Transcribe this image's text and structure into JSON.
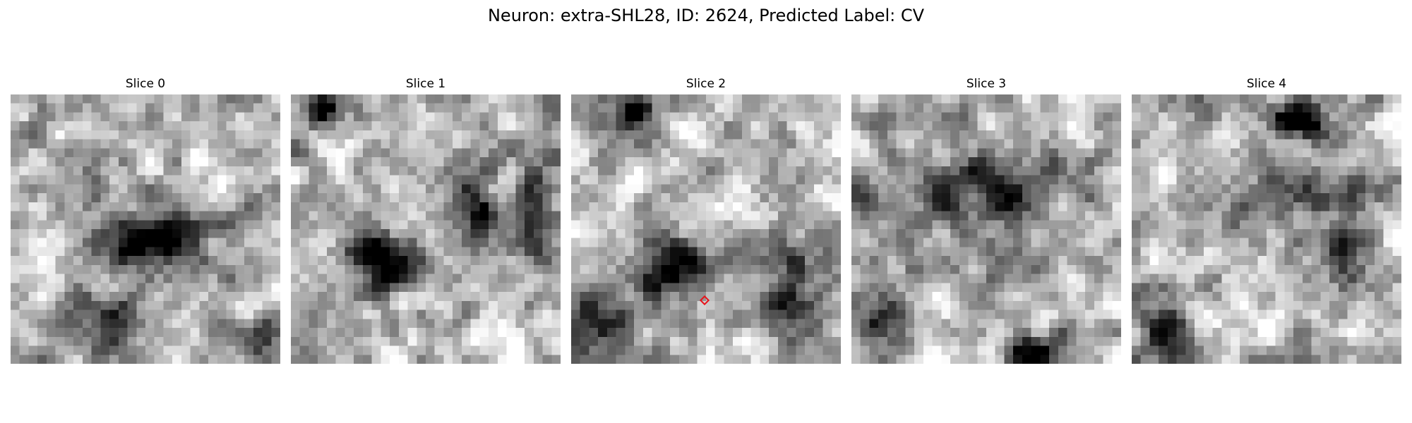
{
  "title": "Neuron: extra-SHL28, ID: 2624, Predicted Label: CV",
  "colormap": "gray",
  "marker_color": "#e8141b",
  "panels": [
    {
      "label": "Slice 0",
      "seed": 11,
      "blobs": [
        [
          0.55,
          0.55,
          0.2,
          0.12,
          0.85
        ],
        [
          0.35,
          0.85,
          0.15,
          0.12,
          0.55
        ],
        [
          0.25,
          0.35,
          0.1,
          0.1,
          0.35
        ],
        [
          0.95,
          0.92,
          0.08,
          0.08,
          0.5
        ]
      ]
    },
    {
      "label": "Slice 1",
      "seed": 23,
      "blobs": [
        [
          0.35,
          0.62,
          0.15,
          0.1,
          0.85
        ],
        [
          0.13,
          0.05,
          0.07,
          0.07,
          0.8
        ],
        [
          0.68,
          0.42,
          0.08,
          0.15,
          0.5
        ],
        [
          0.92,
          0.45,
          0.08,
          0.18,
          0.55
        ]
      ]
    },
    {
      "label": "Slice 2",
      "seed": 37,
      "blobs": [
        [
          0.37,
          0.66,
          0.15,
          0.1,
          0.8
        ],
        [
          0.25,
          0.07,
          0.08,
          0.06,
          0.85
        ],
        [
          0.1,
          0.85,
          0.12,
          0.12,
          0.6
        ],
        [
          0.8,
          0.75,
          0.15,
          0.18,
          0.55
        ]
      ]
    },
    {
      "label": "Slice 3",
      "seed": 51,
      "blobs": [
        [
          0.68,
          0.96,
          0.1,
          0.06,
          0.8
        ],
        [
          0.5,
          0.35,
          0.25,
          0.1,
          0.5
        ],
        [
          0.08,
          0.85,
          0.1,
          0.12,
          0.55
        ],
        [
          0.5,
          0.5,
          0.4,
          0.4,
          0.15
        ]
      ]
    },
    {
      "label": "Slice 4",
      "seed": 67,
      "blobs": [
        [
          0.62,
          0.1,
          0.12,
          0.06,
          0.9
        ],
        [
          0.6,
          0.35,
          0.22,
          0.08,
          0.45
        ],
        [
          0.12,
          0.85,
          0.12,
          0.12,
          0.5
        ],
        [
          0.8,
          0.6,
          0.1,
          0.15,
          0.4
        ]
      ]
    }
  ]
}
